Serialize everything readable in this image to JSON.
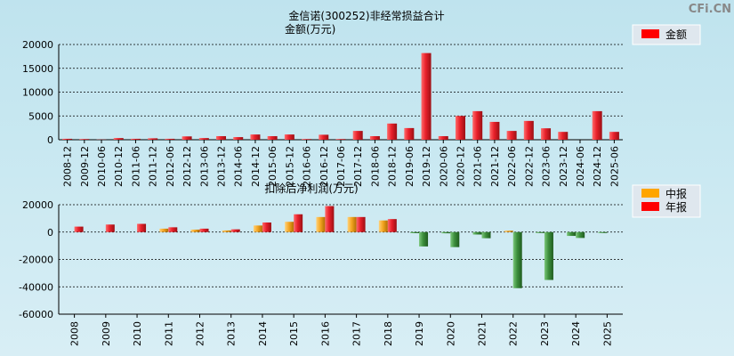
{
  "page_title": "金信诺(300252)非经常损益合计",
  "watermark": "CFi.CN",
  "colors": {
    "red": "#e8202a",
    "green": "#3d8f3d",
    "orange": "#f5a623",
    "grid": "#000000"
  },
  "chart_data": [
    {
      "type": "bar",
      "title": "金信诺(300252)非经常损益合计",
      "ylabel": "金额(万元)",
      "ylim": [
        0,
        20000
      ],
      "yticks": [
        0,
        5000,
        10000,
        15000,
        20000
      ],
      "legend": {
        "label": "金额",
        "position": "top-right"
      },
      "categories": [
        "2008-12",
        "2009-12",
        "2010-06",
        "2010-12",
        "2011-06",
        "2011-12",
        "2012-06",
        "2012-12",
        "2013-06",
        "2013-12",
        "2014-06",
        "2014-12",
        "2015-06",
        "2015-12",
        "2016-06",
        "2016-12",
        "2017-06",
        "2017-12",
        "2018-06",
        "2018-12",
        "2019-06",
        "2019-12",
        "2020-06",
        "2020-12",
        "2021-06",
        "2021-12",
        "2022-06",
        "2022-12",
        "2023-06",
        "2023-12",
        "2024-06",
        "2024-12",
        "2025-06"
      ],
      "values": [
        200,
        150,
        50,
        350,
        200,
        300,
        200,
        700,
        350,
        750,
        550,
        1100,
        750,
        1100,
        150,
        1050,
        150,
        1850,
        750,
        3400,
        2450,
        18200,
        750,
        5000,
        6000,
        3750,
        1850,
        3950,
        2400,
        1650,
        0,
        6000,
        1650
      ]
    },
    {
      "type": "bar",
      "title": "扣除后净利润(万元)",
      "ylim": [
        -60000,
        20000
      ],
      "yticks": [
        20000,
        0,
        -20000,
        -40000,
        -60000
      ],
      "legend": {
        "labels": [
          "中报",
          "年报"
        ],
        "position": "top-right"
      },
      "categories": [
        "2008",
        "2009",
        "2010",
        "2011",
        "2012",
        "2013",
        "2014",
        "2015",
        "2016",
        "2017",
        "2018",
        "2019",
        "2020",
        "2021",
        "2022",
        "2023",
        "2024",
        "2025"
      ],
      "series": [
        {
          "name": "中报",
          "values": [
            null,
            null,
            null,
            2500,
            1800,
            1200,
            4800,
            7500,
            11000,
            11000,
            8500,
            -800,
            -900,
            -1800,
            1000,
            -700,
            -2800,
            -700
          ]
        },
        {
          "name": "年报",
          "values": [
            4000,
            5500,
            6000,
            3500,
            2500,
            2000,
            7000,
            13000,
            19000,
            11000,
            9500,
            -10500,
            -11000,
            -4500,
            -41000,
            -35000,
            -4300,
            null
          ]
        }
      ]
    }
  ]
}
